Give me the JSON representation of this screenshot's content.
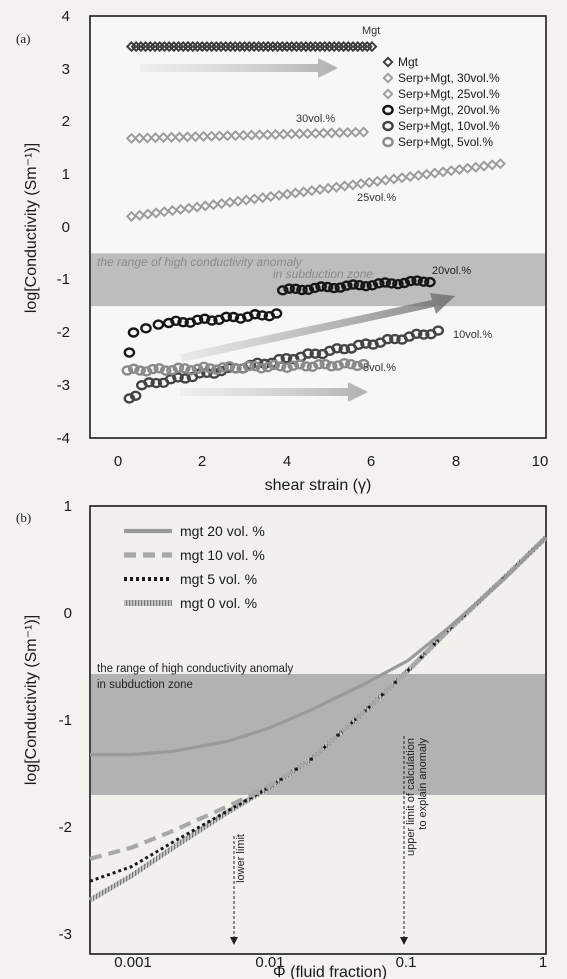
{
  "chart_data": [
    {
      "panel": "(a)",
      "type": "scatter",
      "xlabel": "shear strain (γ)",
      "ylabel": "log[Conductivity (Sm⁻¹)]",
      "xlim": [
        -1,
        10
      ],
      "ylim": [
        -4,
        4
      ],
      "xticks": [
        "0",
        "2",
        "4",
        "6",
        "8",
        "10"
      ],
      "yticks": [
        "4",
        "3",
        "2",
        "1",
        "0",
        "-1",
        "-2",
        "-3",
        "-4"
      ],
      "band": {
        "y": [
          -1.5,
          -0.5
        ],
        "label_line1": "the range of high conductivity anomaly",
        "label_line2": "in  subduction zone"
      },
      "legend_position": "top-right",
      "legend": [
        "Mgt",
        "Serp+Mgt, 30vol.%",
        "Serp+Mgt, 25vol.%",
        "Serp+Mgt, 20vol.%",
        "Serp+Mgt, 10vol.%",
        "Serp+Mgt,   5vol.%"
      ],
      "annotations": [
        "Mgt",
        "30vol.%",
        "25vol.%",
        "20vol.%",
        "10vol.%",
        "5vol.%"
      ],
      "series": [
        {
          "name": "Mgt",
          "marker": "diamond",
          "color": "#3a3a3a",
          "x_start": 0,
          "x_end": 5.8,
          "y_start": 3.42,
          "y_end": 3.42,
          "n": 52
        },
        {
          "name": "Serp+Mgt, 30vol.%",
          "marker": "diamond",
          "color": "#9a9a9a",
          "x_start": 0,
          "x_end": 5.6,
          "y_start": 1.68,
          "y_end": 1.8,
          "n": 30
        },
        {
          "name": "Serp+Mgt, 25vol.%",
          "marker": "diamond",
          "color": "#9a9a9a",
          "x_start": 0,
          "x_end": 8.9,
          "y_start": 0.2,
          "y_end": 1.2,
          "n": 46
        },
        {
          "name": "Serp+Mgt, 20vol.%",
          "marker": "circle",
          "color": "#161616",
          "points": [
            [
              -0.05,
              -2.38
            ],
            [
              0.05,
              -2.0
            ],
            [
              0.35,
              -1.92
            ],
            [
              0.65,
              -1.85
            ]
          ],
          "x_start": 0.9,
          "x_end": 3.5,
          "y_start": -1.82,
          "y_end": -1.65,
          "n": 16,
          "x2_start": 3.65,
          "x2_end": 7.2,
          "y2_start": -1.2,
          "y2_end": -1.02,
          "n2": 24
        },
        {
          "name": "Serp+Mgt, 10vol.%",
          "marker": "circle",
          "color": "#444444",
          "points": [
            [
              -0.05,
              -3.25
            ],
            [
              0.1,
              -3.2
            ]
          ],
          "x_start": 0.25,
          "x_end": 7.4,
          "y_start": -3.0,
          "y_end": -1.98,
          "n": 42
        },
        {
          "name": "Serp+Mgt,   5vol.%",
          "marker": "circle",
          "color": "#8a8a8a",
          "x_start": -0.1,
          "x_end": 5.6,
          "y_start": -2.72,
          "y_end": -2.6,
          "n": 38
        }
      ]
    },
    {
      "panel": "(b)",
      "type": "line",
      "xlabel": "Φ (fluid fraction)",
      "ylabel": "log[Conductivity (Sm⁻¹)]",
      "xscale": "log",
      "xlim": [
        0.0005,
        1
      ],
      "ylim": [
        -3,
        1
      ],
      "xticks": [
        "0.001",
        "0.01",
        "0.1",
        "1"
      ],
      "yticks": [
        "1",
        "0",
        "-1",
        "-2",
        "-3"
      ],
      "band": {
        "y": [
          -1.58,
          -0.5
        ],
        "label_line1": "the range of high conductivity anomaly",
        "label_line2": "in subduction zone"
      },
      "legend_position": "top-left",
      "legend": [
        "mgt 20 vol. %",
        "mgt 10 vol. %",
        "mgt 5 vol. %",
        "mgt 0 vol. %"
      ],
      "annotations": [
        {
          "text": "lower limit",
          "x": 0.006
        },
        {
          "text": "upper limit of calculation",
          "text2": "to explain anomaly",
          "x": 0.1
        }
      ],
      "series": [
        {
          "name": "mgt 20 vol. %",
          "style": "solid",
          "color": "#9a9a9a",
          "x": [
            0.0005,
            0.001,
            0.002,
            0.005,
            0.01,
            0.02,
            0.05,
            0.1,
            0.2,
            0.5,
            1
          ],
          "y": [
            -1.22,
            -1.22,
            -1.19,
            -1.1,
            -0.98,
            -0.82,
            -0.58,
            -0.38,
            -0.08,
            0.35,
            0.72
          ]
        },
        {
          "name": "mgt 10 vol. %",
          "style": "dashed",
          "color": "#a8a8a8",
          "x": [
            0.0005,
            0.001,
            0.002,
            0.005,
            0.01,
            0.02,
            0.05,
            0.1,
            0.2,
            0.5,
            1
          ],
          "y": [
            -2.15,
            -2.05,
            -1.9,
            -1.68,
            -1.5,
            -1.26,
            -0.82,
            -0.47,
            -0.1,
            0.36,
            0.72
          ]
        },
        {
          "name": "mgt 5 vol. %",
          "style": "dotted",
          "color": "#1a1a1a",
          "x": [
            0.0005,
            0.001,
            0.002,
            0.005,
            0.01,
            0.02,
            0.05,
            0.1,
            0.2,
            0.5,
            1
          ],
          "y": [
            -2.35,
            -2.22,
            -2.0,
            -1.72,
            -1.51,
            -1.26,
            -0.82,
            -0.47,
            -0.1,
            0.36,
            0.72
          ]
        },
        {
          "name": "mgt 0 vol. %",
          "style": "hatched",
          "color": "#888888",
          "x": [
            0.0005,
            0.001,
            0.002,
            0.005,
            0.01,
            0.02,
            0.05,
            0.1,
            0.2,
            0.5,
            1
          ],
          "y": [
            -2.52,
            -2.3,
            -2.05,
            -1.73,
            -1.51,
            -1.26,
            -0.82,
            -0.47,
            -0.1,
            0.36,
            0.72
          ]
        }
      ]
    }
  ]
}
